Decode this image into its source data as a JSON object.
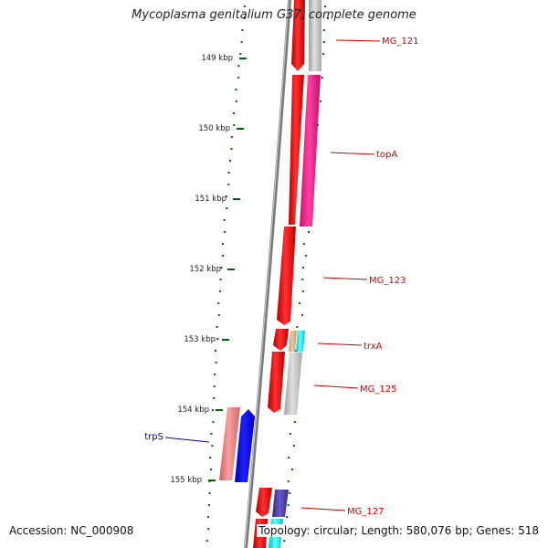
{
  "title": "Mycoplasma genitalium G37, complete genome",
  "footer": {
    "accession": "Accession: NC_000908",
    "summary": "Topology: circular; Length: 580,076 bp; Genes: 518"
  },
  "ticks": [
    "149 kbp",
    "150 kbp",
    "151 kbp",
    "152 kbp",
    "153 kbp",
    "154 kbp",
    "155 kbp"
  ],
  "gene_labels": [
    {
      "name": "MG_121",
      "color": "#cc0000"
    },
    {
      "name": "topA",
      "color": "#cc0000"
    },
    {
      "name": "MG_123",
      "color": "#cc0000"
    },
    {
      "name": "trxA",
      "color": "#cc0000"
    },
    {
      "name": "MG_125",
      "color": "#cc0000"
    },
    {
      "name": "trpS",
      "color": "#0000aa"
    },
    {
      "name": "MG_127",
      "color": "#cc0000"
    }
  ],
  "colors": {
    "backbone": "#808080",
    "cds_forward": "#ff0000",
    "cds_pink": "#ff1493",
    "cds_gray": "#c0c0c0",
    "cds_blue": "#0000ee",
    "cds_salmon": "#f08080",
    "cds_cyan": "#00e5ee",
    "cds_navy": "#483d8b",
    "cds_tan": "#d2b48c",
    "gc_dots": "#006400"
  }
}
